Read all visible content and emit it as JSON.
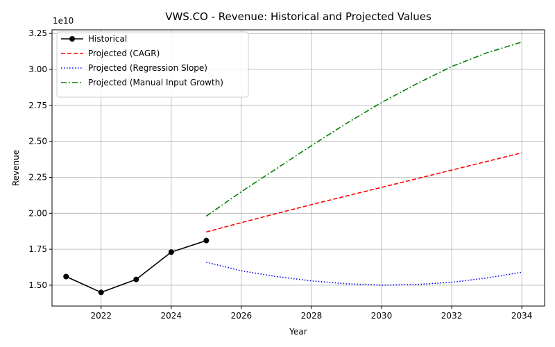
{
  "chart_data": {
    "type": "line",
    "title": "VWS.CO - Revenue: Historical and Projected Values",
    "xlabel": "Year",
    "ylabel": "Revenue",
    "offset_label": "1e10",
    "xlim": [
      2020.6,
      2034.65
    ],
    "ylim": [
      13550000000.0,
      32750000000.0
    ],
    "x_ticks": [
      2022,
      2024,
      2026,
      2028,
      2030,
      2032,
      2034
    ],
    "y_ticks": [
      15000000000.0,
      17500000000.0,
      20000000000.0,
      22500000000.0,
      25000000000.0,
      27500000000.0,
      30000000000.0,
      32500000000.0
    ],
    "y_tick_labels": [
      "1.50",
      "1.75",
      "2.00",
      "2.25",
      "2.50",
      "2.75",
      "3.00",
      "3.25"
    ],
    "grid": true,
    "legend_position": "upper-left",
    "series": [
      {
        "name": "Historical",
        "color": "#000000",
        "style": "solid-markers",
        "x": [
          2021,
          2022,
          2023,
          2024,
          2025
        ],
        "y": [
          15600000000.0,
          14500000000.0,
          15400000000.0,
          17300000000.0,
          18100000000.0
        ]
      },
      {
        "name": "Projected (CAGR)",
        "color": "#ff0000",
        "style": "dashed",
        "x": [
          2025,
          2026,
          2027,
          2028,
          2029,
          2030,
          2031,
          2032,
          2033,
          2034
        ],
        "y": [
          18700000000.0,
          19350000000.0,
          19980000000.0,
          20600000000.0,
          21200000000.0,
          21800000000.0,
          22400000000.0,
          23000000000.0,
          23600000000.0,
          24200000000.0
        ]
      },
      {
        "name": "Projected (Regression Slope)",
        "color": "#0000ff",
        "style": "dotted",
        "x": [
          2025,
          2026,
          2027,
          2028,
          2029,
          2030,
          2031,
          2032,
          2033,
          2034
        ],
        "y": [
          16600000000.0,
          16000000000.0,
          15600000000.0,
          15300000000.0,
          15100000000.0,
          15000000000.0,
          15050000000.0,
          15200000000.0,
          15500000000.0,
          15900000000.0
        ]
      },
      {
        "name": "Projected (Manual Input Growth)",
        "color": "#008000",
        "style": "dashdot",
        "x": [
          2025,
          2026,
          2027,
          2028,
          2029,
          2030,
          2031,
          2032,
          2033,
          2034
        ],
        "y": [
          19800000000.0,
          21500000000.0,
          23100000000.0,
          24700000000.0,
          26250000000.0,
          27700000000.0,
          29000000000.0,
          30200000000.0,
          31150000000.0,
          31900000000.0
        ]
      }
    ]
  }
}
